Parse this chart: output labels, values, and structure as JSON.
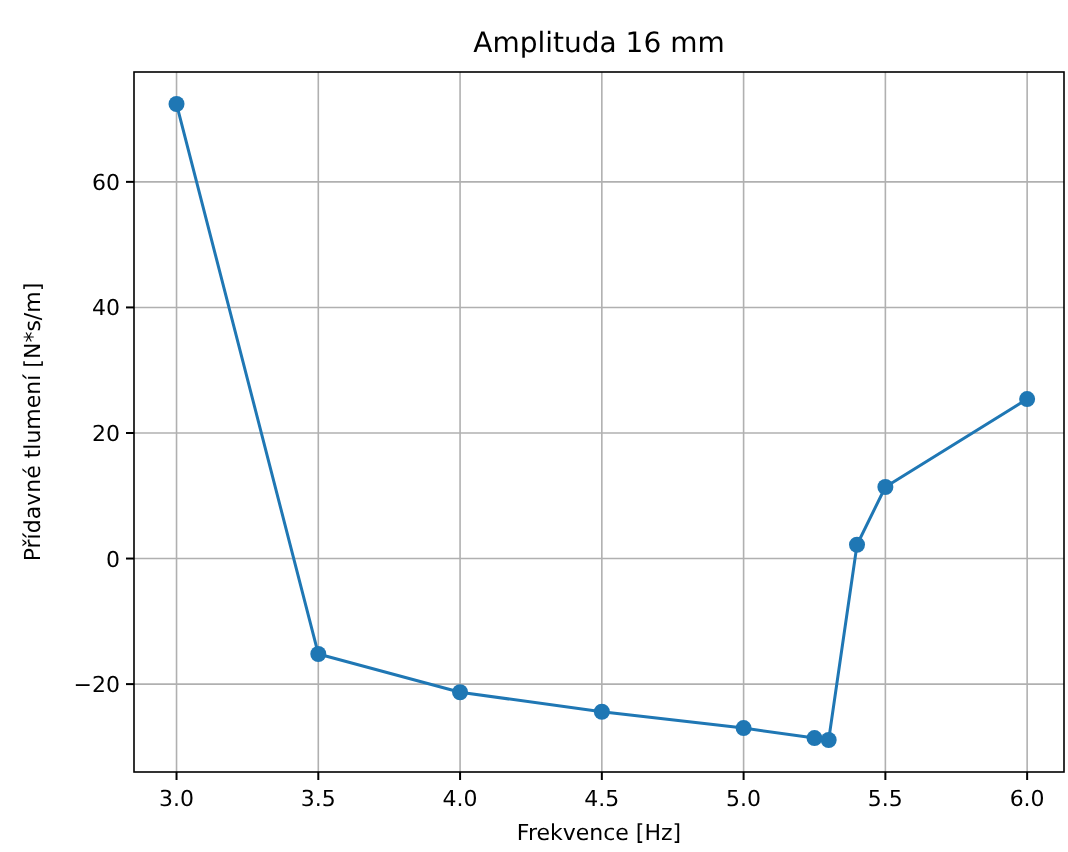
{
  "chart_data": {
    "type": "line",
    "title": "Amplituda 16 mm",
    "xlabel": "Frekvence [Hz]",
    "ylabel": "Přídavné tlumení [N*s/m]",
    "x": [
      3.0,
      3.5,
      4.0,
      4.5,
      5.0,
      5.25,
      5.3,
      5.4,
      5.5,
      6.0
    ],
    "series": [
      {
        "color": "#1f77b4",
        "values": [
          72.4,
          -15.2,
          -21.3,
          -24.4,
          -27.0,
          -28.6,
          -28.9,
          2.2,
          11.4,
          25.4
        ]
      }
    ],
    "xlim": [
      2.85,
      6.13
    ],
    "xticks": [
      {
        "value": 3,
        "label": "3.0"
      },
      {
        "value": 3.5,
        "label": "3.5"
      },
      {
        "value": 4,
        "label": "4.0"
      },
      {
        "value": 4.5,
        "label": "4.5"
      },
      {
        "value": 5,
        "label": "5.0"
      },
      {
        "value": 5.5,
        "label": "5.5"
      },
      {
        "value": 6,
        "label": "6.0"
      }
    ],
    "ylim": [
      -34,
      77.5
    ],
    "yticks": [
      {
        "value": -20,
        "label": "−20"
      },
      0,
      20,
      40,
      60
    ],
    "grid": true,
    "marker": "circle",
    "line_style": "solid"
  }
}
